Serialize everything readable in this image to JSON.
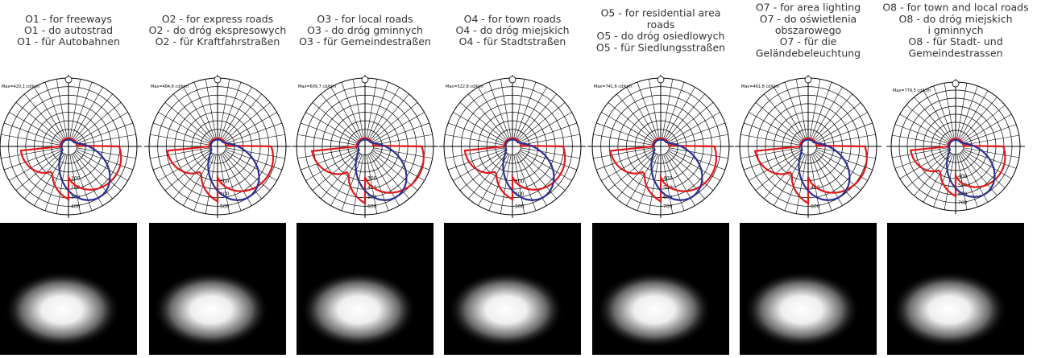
{
  "columns": [
    {
      "lines": [
        "O1 - for freeways",
        "O1 - do autostrad",
        "O1 - für Autobahnen"
      ],
      "max": "Max=420,1 cd/klm",
      "rings": [
        "100",
        "200",
        "300",
        "400"
      ]
    },
    {
      "lines": [
        "O2 - for express roads",
        "O2 - do dróg ekspresowych",
        "O2 - für Kraftfahrstraßen"
      ],
      "max": "Max=484,6 cd/klm",
      "rings": [
        "300",
        "400",
        "500"
      ]
    },
    {
      "lines": [
        "O3 - for local roads",
        "O3 - do dróg gminnych",
        "O3 - für Gemeindestraßen"
      ],
      "max": "Max=609,7 cd/klm",
      "rings": [
        "300",
        "400",
        "500",
        "600"
      ]
    },
    {
      "lines": [
        "O4 - for town roads",
        "O4 - do dróg miejskich",
        "O4 - für Stadtstraßen"
      ],
      "max": "Max=522,8 cd/klm",
      "rings": [
        "300",
        "400",
        "500"
      ]
    },
    {
      "lines": [
        "O5 - for residential area",
        "roads",
        "O5 - do dróg osiedlowych",
        "O5 - für Siedlungsstraßen"
      ],
      "max": "Max=741,6 cd/klm",
      "rings": [
        "400",
        "500",
        "600",
        "700"
      ]
    },
    {
      "lines": [
        "O7 - for area lighting",
        "O7 - do oświetlenia",
        "obszarowego",
        "O7 - für die",
        "Geländebeleuchtung"
      ],
      "max": "Max=461,8 cd/klm",
      "rings": [
        "400",
        "600"
      ]
    },
    {
      "lines": [
        "O8 - for town and local roads",
        "O8 - do dróg miejskich",
        "i gminnych",
        "O8 - für Stadt- und",
        "Gemeindestrassen"
      ],
      "max": "Max=779,5 cd/klm",
      "rings": [
        "400",
        "500",
        "600",
        "700"
      ]
    }
  ]
}
